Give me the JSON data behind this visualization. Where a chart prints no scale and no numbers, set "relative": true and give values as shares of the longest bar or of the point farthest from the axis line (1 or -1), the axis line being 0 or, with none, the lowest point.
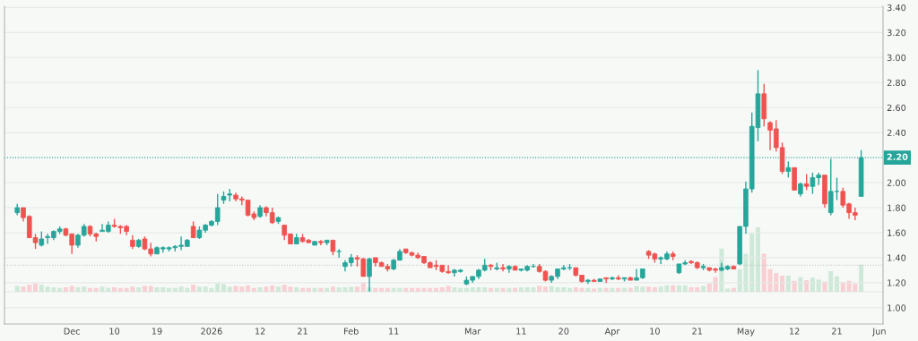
{
  "chart_data": [
    {
      "type": "candlestick",
      "categories": [
        null,
        null,
        null,
        null,
        null,
        null,
        null,
        null,
        null,
        "Dec",
        null,
        null,
        null,
        null,
        null,
        null,
        "10",
        null,
        null,
        null,
        null,
        null,
        null,
        "19",
        null,
        null,
        null,
        null,
        null,
        null,
        null,
        null,
        "2026",
        null,
        null,
        null,
        null,
        null,
        null,
        null,
        "12",
        null,
        null,
        null,
        null,
        null,
        null,
        "21",
        null,
        null,
        null,
        null,
        null,
        null,
        null,
        "Feb",
        null,
        null,
        null,
        null,
        null,
        null,
        "11",
        null,
        null,
        null,
        null,
        null,
        null,
        null,
        null,
        null,
        null,
        null,
        null,
        "Mar",
        null,
        null,
        null,
        null,
        null,
        null,
        null,
        "11",
        null,
        null,
        null,
        null,
        null,
        null,
        "20",
        null,
        null,
        null,
        null,
        null,
        null,
        null,
        "Apr",
        null,
        null,
        null,
        null,
        null,
        null,
        "10",
        null,
        null,
        null,
        null,
        null,
        null,
        "21",
        null,
        null,
        null,
        null,
        null,
        null,
        null,
        "May",
        null,
        null,
        null,
        null,
        null,
        null,
        null,
        "12",
        null,
        null,
        null,
        null,
        null,
        null,
        "21",
        null,
        null,
        null,
        null,
        null,
        null,
        "Jun"
      ],
      "ohlc": [
        [
          1.76,
          1.83,
          1.74,
          1.8
        ],
        [
          1.8,
          1.8,
          1.69,
          1.72
        ],
        [
          1.73,
          1.74,
          1.56,
          1.56
        ],
        [
          1.56,
          1.59,
          1.47,
          1.52
        ],
        [
          1.5,
          1.61,
          1.49,
          1.55
        ],
        [
          1.56,
          1.59,
          1.51,
          1.57
        ],
        [
          1.56,
          1.62,
          1.54,
          1.61
        ],
        [
          1.61,
          1.65,
          1.59,
          1.63
        ],
        [
          1.63,
          1.64,
          1.57,
          1.58
        ],
        [
          1.59,
          1.59,
          1.43,
          1.5
        ],
        [
          1.5,
          1.59,
          1.48,
          1.58
        ],
        [
          1.58,
          1.67,
          1.57,
          1.65
        ],
        [
          1.65,
          1.66,
          1.57,
          1.59
        ],
        [
          1.59,
          1.6,
          1.53,
          1.57
        ],
        [
          1.61,
          1.67,
          1.61,
          1.62
        ],
        [
          1.61,
          1.69,
          1.6,
          1.66
        ],
        [
          1.66,
          1.71,
          1.64,
          1.65
        ],
        [
          1.65,
          1.66,
          1.59,
          1.64
        ],
        [
          1.65,
          1.66,
          1.58,
          1.61
        ],
        [
          1.54,
          1.58,
          1.47,
          1.49
        ],
        [
          1.49,
          1.55,
          1.48,
          1.54
        ],
        [
          1.55,
          1.57,
          1.46,
          1.47
        ],
        [
          1.47,
          1.52,
          1.41,
          1.43
        ],
        [
          1.43,
          1.49,
          1.43,
          1.48
        ],
        [
          1.47,
          1.49,
          1.44,
          1.48
        ],
        [
          1.47,
          1.49,
          1.45,
          1.48
        ],
        [
          1.48,
          1.5,
          1.45,
          1.49
        ],
        [
          1.49,
          1.57,
          1.46,
          1.5
        ],
        [
          1.49,
          1.55,
          1.49,
          1.54
        ],
        [
          1.65,
          1.69,
          1.56,
          1.56
        ],
        [
          1.56,
          1.65,
          1.55,
          1.62
        ],
        [
          1.62,
          1.67,
          1.6,
          1.66
        ],
        [
          1.66,
          1.7,
          1.65,
          1.69
        ],
        [
          1.69,
          1.91,
          1.66,
          1.8
        ],
        [
          1.86,
          1.93,
          1.83,
          1.89
        ],
        [
          1.9,
          1.95,
          1.85,
          1.91
        ],
        [
          1.9,
          1.92,
          1.85,
          1.87
        ],
        [
          1.87,
          1.89,
          1.82,
          1.86
        ],
        [
          1.86,
          1.86,
          1.73,
          1.74
        ],
        [
          1.75,
          1.77,
          1.7,
          1.72
        ],
        [
          1.73,
          1.82,
          1.72,
          1.8
        ],
        [
          1.8,
          1.81,
          1.73,
          1.76
        ],
        [
          1.76,
          1.8,
          1.67,
          1.68
        ],
        [
          1.69,
          1.73,
          1.67,
          1.72
        ],
        [
          1.66,
          1.66,
          1.54,
          1.58
        ],
        [
          1.59,
          1.59,
          1.51,
          1.51
        ],
        [
          1.51,
          1.59,
          1.51,
          1.56
        ],
        [
          1.56,
          1.59,
          1.52,
          1.53
        ],
        [
          1.54,
          1.55,
          1.52,
          1.52
        ],
        [
          1.5,
          1.53,
          1.5,
          1.53
        ],
        [
          1.53,
          1.54,
          1.5,
          1.52
        ],
        [
          1.52,
          1.54,
          1.5,
          1.54
        ],
        [
          1.54,
          1.54,
          1.42,
          1.45
        ],
        [
          1.45,
          1.47,
          1.4,
          1.45
        ],
        [
          1.33,
          1.38,
          1.29,
          1.36
        ],
        [
          1.36,
          1.43,
          1.33,
          1.4
        ],
        [
          1.4,
          1.42,
          1.33,
          1.39
        ],
        [
          1.39,
          1.4,
          1.25,
          1.25
        ],
        [
          1.25,
          1.4,
          1.13,
          1.39
        ],
        [
          1.4,
          1.4,
          1.33,
          1.36
        ],
        [
          1.36,
          1.37,
          1.33,
          1.33
        ],
        [
          1.33,
          1.35,
          1.29,
          1.31
        ],
        [
          1.31,
          1.39,
          1.3,
          1.38
        ],
        [
          1.38,
          1.47,
          1.38,
          1.45
        ],
        [
          1.47,
          1.47,
          1.43,
          1.44
        ],
        [
          1.44,
          1.45,
          1.41,
          1.42
        ],
        [
          1.42,
          1.44,
          1.39,
          1.4
        ],
        [
          1.41,
          1.41,
          1.35,
          1.36
        ],
        [
          1.36,
          1.37,
          1.32,
          1.32
        ],
        [
          1.34,
          1.38,
          1.3,
          1.33
        ],
        [
          1.34,
          1.34,
          1.28,
          1.29
        ],
        [
          1.29,
          1.34,
          1.27,
          1.28
        ],
        [
          1.28,
          1.31,
          1.25,
          1.3
        ],
        [
          1.29,
          1.31,
          1.28,
          1.3
        ],
        [
          1.19,
          1.25,
          1.18,
          1.22
        ],
        [
          1.22,
          1.25,
          1.2,
          1.25
        ],
        [
          1.25,
          1.31,
          1.23,
          1.3
        ],
        [
          1.3,
          1.39,
          1.29,
          1.34
        ],
        [
          1.34,
          1.35,
          1.3,
          1.33
        ],
        [
          1.31,
          1.36,
          1.3,
          1.32
        ],
        [
          1.32,
          1.35,
          1.29,
          1.31
        ],
        [
          1.31,
          1.34,
          1.28,
          1.33
        ],
        [
          1.33,
          1.34,
          1.3,
          1.3
        ],
        [
          1.3,
          1.31,
          1.29,
          1.31
        ],
        [
          1.3,
          1.34,
          1.29,
          1.33
        ],
        [
          1.33,
          1.35,
          1.32,
          1.33
        ],
        [
          1.33,
          1.35,
          1.28,
          1.29
        ],
        [
          1.29,
          1.3,
          1.21,
          1.22
        ],
        [
          1.22,
          1.26,
          1.2,
          1.25
        ],
        [
          1.25,
          1.31,
          1.23,
          1.31
        ],
        [
          1.31,
          1.34,
          1.3,
          1.32
        ],
        [
          1.32,
          1.35,
          1.3,
          1.32
        ],
        [
          1.32,
          1.32,
          1.25,
          1.26
        ],
        [
          1.26,
          1.26,
          1.2,
          1.21
        ],
        [
          1.21,
          1.23,
          1.19,
          1.22
        ],
        [
          1.22,
          1.23,
          1.21,
          1.21
        ],
        [
          1.21,
          1.23,
          1.21,
          1.23
        ],
        [
          1.24,
          1.24,
          1.2,
          1.23
        ],
        [
          1.23,
          1.25,
          1.22,
          1.24
        ],
        [
          1.24,
          1.26,
          1.22,
          1.23
        ],
        [
          1.23,
          1.24,
          1.21,
          1.24
        ],
        [
          1.24,
          1.25,
          1.22,
          1.22
        ],
        [
          1.22,
          1.31,
          1.22,
          1.24
        ],
        [
          1.24,
          1.31,
          1.23,
          1.31
        ],
        [
          1.45,
          1.46,
          1.39,
          1.42
        ],
        [
          1.43,
          1.44,
          1.36,
          1.39
        ],
        [
          1.39,
          1.41,
          1.35,
          1.4
        ],
        [
          1.39,
          1.45,
          1.38,
          1.43
        ],
        [
          1.43,
          1.45,
          1.38,
          1.41
        ],
        [
          1.28,
          1.35,
          1.27,
          1.35
        ],
        [
          1.35,
          1.38,
          1.34,
          1.36
        ],
        [
          1.37,
          1.38,
          1.35,
          1.36
        ],
        [
          1.36,
          1.37,
          1.31,
          1.32
        ],
        [
          1.32,
          1.35,
          1.3,
          1.33
        ],
        [
          1.32,
          1.32,
          1.29,
          1.3
        ],
        [
          1.31,
          1.32,
          1.28,
          1.3
        ],
        [
          1.3,
          1.36,
          1.29,
          1.32
        ],
        [
          1.31,
          1.34,
          1.3,
          1.33
        ],
        [
          1.33,
          1.34,
          1.31,
          1.31
        ],
        [
          1.35,
          1.65,
          1.34,
          1.65
        ],
        [
          1.65,
          2.01,
          1.59,
          1.95
        ],
        [
          1.95,
          2.56,
          1.92,
          2.45
        ],
        [
          2.44,
          2.9,
          2.33,
          2.71
        ],
        [
          2.71,
          2.79,
          2.45,
          2.51
        ],
        [
          2.48,
          2.49,
          2.26,
          2.42
        ],
        [
          2.43,
          2.5,
          2.25,
          2.28
        ],
        [
          2.28,
          2.32,
          2.07,
          2.09
        ],
        [
          2.09,
          2.17,
          2.04,
          2.12
        ],
        [
          2.12,
          2.12,
          1.94,
          1.94
        ],
        [
          1.91,
          2.0,
          1.89,
          1.99
        ],
        [
          1.99,
          2.07,
          1.94,
          1.97
        ],
        [
          1.97,
          2.08,
          1.91,
          2.04
        ],
        [
          2.04,
          2.08,
          1.98,
          2.06
        ],
        [
          2.06,
          2.06,
          1.8,
          1.83
        ],
        [
          1.76,
          2.19,
          1.74,
          1.93
        ],
        [
          1.93,
          2.04,
          1.86,
          1.93
        ],
        [
          1.93,
          1.96,
          1.8,
          1.82
        ],
        [
          1.83,
          1.84,
          1.71,
          1.76
        ],
        [
          1.76,
          1.8,
          1.7,
          1.74
        ],
        [
          1.89,
          2.26,
          1.89,
          2.2
        ],
        null,
        null,
        null
      ],
      "colors": [
        "#26a69a",
        "#ef5350",
        "#ef5350",
        "#ef5350",
        "#26a69a",
        "#26a69a",
        "#26a69a",
        "#26a69a",
        "#ef5350",
        "#ef5350",
        "#26a69a",
        "#26a69a",
        "#ef5350",
        "#ef5350",
        "#26a69a",
        "#26a69a",
        "#ef5350",
        "#ef5350",
        "#ef5350",
        "#ef5350",
        "#26a69a",
        "#ef5350",
        "#ef5350",
        "#26a69a",
        "#26a69a",
        "#26a69a",
        "#26a69a",
        "#26a69a",
        "#26a69a",
        "#ef5350",
        "#26a69a",
        "#26a69a",
        "#26a69a",
        "#26a69a",
        "#26a69a",
        "#26a69a",
        "#ef5350",
        "#ef5350",
        "#ef5350",
        "#ef5350",
        "#26a69a",
        "#ef5350",
        "#ef5350",
        "#26a69a",
        "#ef5350",
        "#ef5350",
        "#26a69a",
        "#ef5350",
        "#ef5350",
        "#26a69a",
        "#ef5350",
        "#26a69a",
        "#ef5350",
        "#26a69a",
        "#26a69a",
        "#26a69a",
        "#ef5350",
        "#ef5350",
        "#26a69a",
        "#ef5350",
        "#ef5350",
        "#ef5350",
        "#26a69a",
        "#26a69a",
        "#ef5350",
        "#ef5350",
        "#ef5350",
        "#ef5350",
        "#ef5350",
        "#ef5350",
        "#ef5350",
        "#ef5350",
        "#26a69a",
        "#26a69a",
        "#26a69a",
        "#26a69a",
        "#26a69a",
        "#26a69a",
        "#ef5350",
        "#26a69a",
        "#ef5350",
        "#26a69a",
        "#ef5350",
        "#26a69a",
        "#26a69a",
        "#26a69a",
        "#ef5350",
        "#ef5350",
        "#26a69a",
        "#26a69a",
        "#26a69a",
        "#26a69a",
        "#ef5350",
        "#ef5350",
        "#26a69a",
        "#ef5350",
        "#26a69a",
        "#ef5350",
        "#26a69a",
        "#ef5350",
        "#26a69a",
        "#ef5350",
        "#26a69a",
        "#26a69a",
        "#ef5350",
        "#ef5350",
        "#26a69a",
        "#26a69a",
        "#ef5350",
        "#26a69a",
        "#26a69a",
        "#ef5350",
        "#ef5350",
        "#26a69a",
        "#ef5350",
        "#ef5350",
        "#26a69a",
        "#26a69a",
        "#ef5350",
        "#26a69a",
        "#26a69a",
        "#26a69a",
        "#26a69a",
        "#ef5350",
        "#ef5350",
        "#ef5350",
        "#ef5350",
        "#26a69a",
        "#ef5350",
        "#26a69a",
        "#ef5350",
        "#26a69a",
        "#26a69a",
        "#ef5350",
        "#26a69a",
        "#26a69a",
        "#ef5350",
        "#ef5350",
        "#ef5350",
        "#26a69a",
        null,
        null,
        null
      ],
      "ylim": [
        0.87,
        3.41
      ],
      "yticks": [
        {
          "value": 1.0,
          "label": "1.00"
        },
        {
          "value": 1.2,
          "label": "1.20"
        },
        {
          "value": 1.4,
          "label": "1.40"
        },
        {
          "value": 1.6,
          "label": "1.60"
        },
        {
          "value": 1.8,
          "label": "1.80"
        },
        {
          "value": 2.0,
          "label": "2.00"
        },
        {
          "value": 2.4,
          "label": "2.40"
        },
        {
          "value": 2.6,
          "label": "2.60"
        },
        {
          "value": 2.8,
          "label": "2.80"
        },
        {
          "value": 3.0,
          "label": "3.00"
        },
        {
          "value": 3.2,
          "label": "3.20"
        },
        {
          "value": 3.4,
          "label": "3.40"
        }
      ],
      "grid": "y",
      "ref_lines": [
        {
          "axis": "y",
          "value": 2.2,
          "label": "2.20",
          "color": "#26a69a",
          "line_style": "dotted"
        },
        {
          "axis": "y",
          "value": 1.34,
          "color": "#b8c0bc",
          "line_style": "dotted"
        }
      ]
    },
    {
      "type": "bar",
      "relative": true,
      "categories": [
        null,
        null,
        null,
        null,
        null,
        null,
        null,
        null,
        null,
        null,
        null,
        null,
        null,
        null,
        null,
        null,
        null,
        null,
        null,
        null,
        null,
        null,
        null,
        null,
        null,
        null,
        null,
        null,
        null,
        null,
        null,
        null,
        null,
        null,
        null,
        null,
        null,
        null,
        null,
        null,
        null,
        null,
        null,
        null,
        null,
        null,
        null,
        null,
        null,
        null,
        null,
        null,
        null,
        null,
        null,
        null,
        null,
        null,
        null,
        null,
        null,
        null,
        null,
        null,
        null,
        null,
        null,
        null,
        null,
        null,
        null,
        null,
        null,
        null,
        null,
        null,
        null,
        null,
        null,
        null,
        null,
        null,
        null,
        null,
        null,
        null,
        null,
        null,
        null,
        null,
        null,
        null,
        null,
        null,
        null,
        null,
        null,
        null,
        null,
        null,
        null,
        null,
        null,
        null,
        null,
        null,
        null,
        null,
        null,
        null,
        null,
        null,
        null,
        null,
        null,
        null,
        null,
        null,
        null,
        null,
        null,
        null,
        null,
        null,
        null,
        null,
        null,
        null,
        null,
        null,
        null,
        null,
        null,
        null,
        null,
        null,
        null,
        null,
        null,
        null,
        null,
        null,
        null
      ],
      "values": [
        0.09,
        0.08,
        0.11,
        0.13,
        0.11,
        0.08,
        0.07,
        0.06,
        0.07,
        0.09,
        0.07,
        0.08,
        0.06,
        0.06,
        0.08,
        0.06,
        0.07,
        0.06,
        0.06,
        0.08,
        0.07,
        0.09,
        0.09,
        0.07,
        0.07,
        0.06,
        0.06,
        0.08,
        0.06,
        0.11,
        0.08,
        0.08,
        0.06,
        0.13,
        0.12,
        0.08,
        0.09,
        0.08,
        0.1,
        0.06,
        0.07,
        0.08,
        0.1,
        0.08,
        0.11,
        0.08,
        0.07,
        0.06,
        0.06,
        0.06,
        0.06,
        0.06,
        0.08,
        0.07,
        0.07,
        0.08,
        0.08,
        0.15,
        0.07,
        0.06,
        0.06,
        0.06,
        0.06,
        0.06,
        0.06,
        0.06,
        0.06,
        0.06,
        0.06,
        0.06,
        0.07,
        0.09,
        0.07,
        0.06,
        0.06,
        0.07,
        0.07,
        0.07,
        0.06,
        0.06,
        0.06,
        0.06,
        0.06,
        0.07,
        0.07,
        0.07,
        0.09,
        0.08,
        0.09,
        0.07,
        0.07,
        0.06,
        0.07,
        0.06,
        0.06,
        0.05,
        0.06,
        0.06,
        0.06,
        0.06,
        0.06,
        0.06,
        0.09,
        0.08,
        0.08,
        0.07,
        0.08,
        0.1,
        0.1,
        0.1,
        0.1,
        0.07,
        0.07,
        0.09,
        0.13,
        0.23,
        0.67,
        0.05,
        0.06,
        0.35,
        0.59,
        0.91,
        1,
        0.59,
        0.35,
        0.29,
        0.25,
        0.25,
        0.17,
        0.23,
        0.18,
        0.22,
        0.19,
        0.16,
        0.32,
        0.24,
        0.15,
        0.17,
        0.12,
        0.42,
        null,
        null,
        null
      ],
      "colors": [
        "#cfe9d9",
        "#f8d0d3",
        "#f8d0d3",
        "#f8d0d3",
        "#cfe9d9",
        "#cfe9d9",
        "#cfe9d9",
        "#cfe9d9",
        "#f8d0d3",
        "#f8d0d3",
        "#cfe9d9",
        "#cfe9d9",
        "#f8d0d3",
        "#f8d0d3",
        "#cfe9d9",
        "#cfe9d9",
        "#f8d0d3",
        "#f8d0d3",
        "#f8d0d3",
        "#f8d0d3",
        "#cfe9d9",
        "#f8d0d3",
        "#f8d0d3",
        "#cfe9d9",
        "#cfe9d9",
        "#cfe9d9",
        "#cfe9d9",
        "#cfe9d9",
        "#cfe9d9",
        "#f8d0d3",
        "#cfe9d9",
        "#cfe9d9",
        "#cfe9d9",
        "#cfe9d9",
        "#cfe9d9",
        "#cfe9d9",
        "#f8d0d3",
        "#f8d0d3",
        "#f8d0d3",
        "#f8d0d3",
        "#cfe9d9",
        "#f8d0d3",
        "#f8d0d3",
        "#cfe9d9",
        "#f8d0d3",
        "#f8d0d3",
        "#cfe9d9",
        "#f8d0d3",
        "#f8d0d3",
        "#cfe9d9",
        "#f8d0d3",
        "#cfe9d9",
        "#f8d0d3",
        "#cfe9d9",
        "#cfe9d9",
        "#cfe9d9",
        "#f8d0d3",
        "#f8d0d3",
        "#cfe9d9",
        "#f8d0d3",
        "#f8d0d3",
        "#f8d0d3",
        "#cfe9d9",
        "#cfe9d9",
        "#f8d0d3",
        "#f8d0d3",
        "#f8d0d3",
        "#f8d0d3",
        "#f8d0d3",
        "#f8d0d3",
        "#f8d0d3",
        "#f8d0d3",
        "#cfe9d9",
        "#cfe9d9",
        "#cfe9d9",
        "#cfe9d9",
        "#cfe9d9",
        "#cfe9d9",
        "#f8d0d3",
        "#cfe9d9",
        "#f8d0d3",
        "#cfe9d9",
        "#f8d0d3",
        "#cfe9d9",
        "#cfe9d9",
        "#cfe9d9",
        "#f8d0d3",
        "#f8d0d3",
        "#cfe9d9",
        "#cfe9d9",
        "#cfe9d9",
        "#cfe9d9",
        "#f8d0d3",
        "#f8d0d3",
        "#cfe9d9",
        "#f8d0d3",
        "#cfe9d9",
        "#f8d0d3",
        "#cfe9d9",
        "#f8d0d3",
        "#cfe9d9",
        "#f8d0d3",
        "#cfe9d9",
        "#cfe9d9",
        "#f8d0d3",
        "#f8d0d3",
        "#cfe9d9",
        "#cfe9d9",
        "#f8d0d3",
        "#cfe9d9",
        "#cfe9d9",
        "#f8d0d3",
        "#f8d0d3",
        "#cfe9d9",
        "#f8d0d3",
        "#f8d0d3",
        "#cfe9d9",
        "#cfe9d9",
        "#f8d0d3",
        "#cfe9d9",
        "#cfe9d9",
        "#cfe9d9",
        "#cfe9d9",
        "#f8d0d3",
        "#f8d0d3",
        "#f8d0d3",
        "#f8d0d3",
        "#cfe9d9",
        "#f8d0d3",
        "#cfe9d9",
        "#f8d0d3",
        "#cfe9d9",
        "#cfe9d9",
        "#f8d0d3",
        "#cfe9d9",
        "#cfe9d9",
        "#f8d0d3",
        "#f8d0d3",
        "#f8d0d3",
        "#cfe9d9",
        null,
        null,
        null
      ]
    }
  ]
}
